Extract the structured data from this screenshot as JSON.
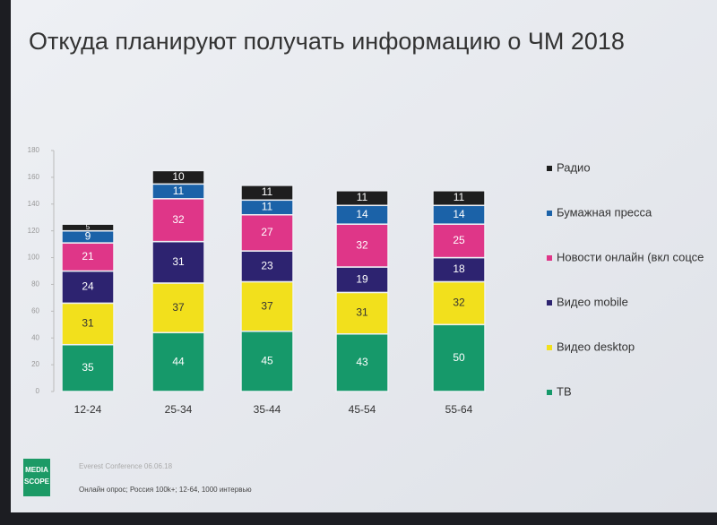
{
  "chart_data": {
    "type": "stacked_bar",
    "title": "Откуда планируют получать информацию о ЧМ 2018",
    "categories": [
      "12-24",
      "25-34",
      "35-44",
      "45-54",
      "55-64"
    ],
    "series": [
      {
        "name": "ТВ",
        "color": "#16996a",
        "values": [
          35,
          44,
          45,
          43,
          50
        ]
      },
      {
        "name": "Видео desktop",
        "color": "#f2e01c",
        "values": [
          31,
          37,
          37,
          31,
          32
        ]
      },
      {
        "name": "Видео mobile",
        "color": "#2d2370",
        "values": [
          24,
          31,
          23,
          19,
          18
        ]
      },
      {
        "name": "Новости онлайн (вкл соцсе",
        "color": "#df3688",
        "values": [
          21,
          32,
          27,
          32,
          25
        ]
      },
      {
        "name": "Бумажная пресса",
        "color": "#1b62a8",
        "values": [
          9,
          11,
          11,
          14,
          14
        ]
      },
      {
        "name": "Радио",
        "color": "#1e1e1e",
        "values": [
          5,
          10,
          11,
          11,
          11
        ]
      }
    ],
    "ylim": [
      0,
      180
    ],
    "yticks": [
      0,
      20,
      40,
      60,
      80,
      100,
      120,
      140,
      160,
      180
    ],
    "footer": {
      "event": "Everest Conference 06.06.18",
      "note": "Онлайн опрос; Россия 100k+; 12-64, 1000 интервью",
      "logo": [
        "MEDIA",
        "SCOPE"
      ]
    }
  }
}
